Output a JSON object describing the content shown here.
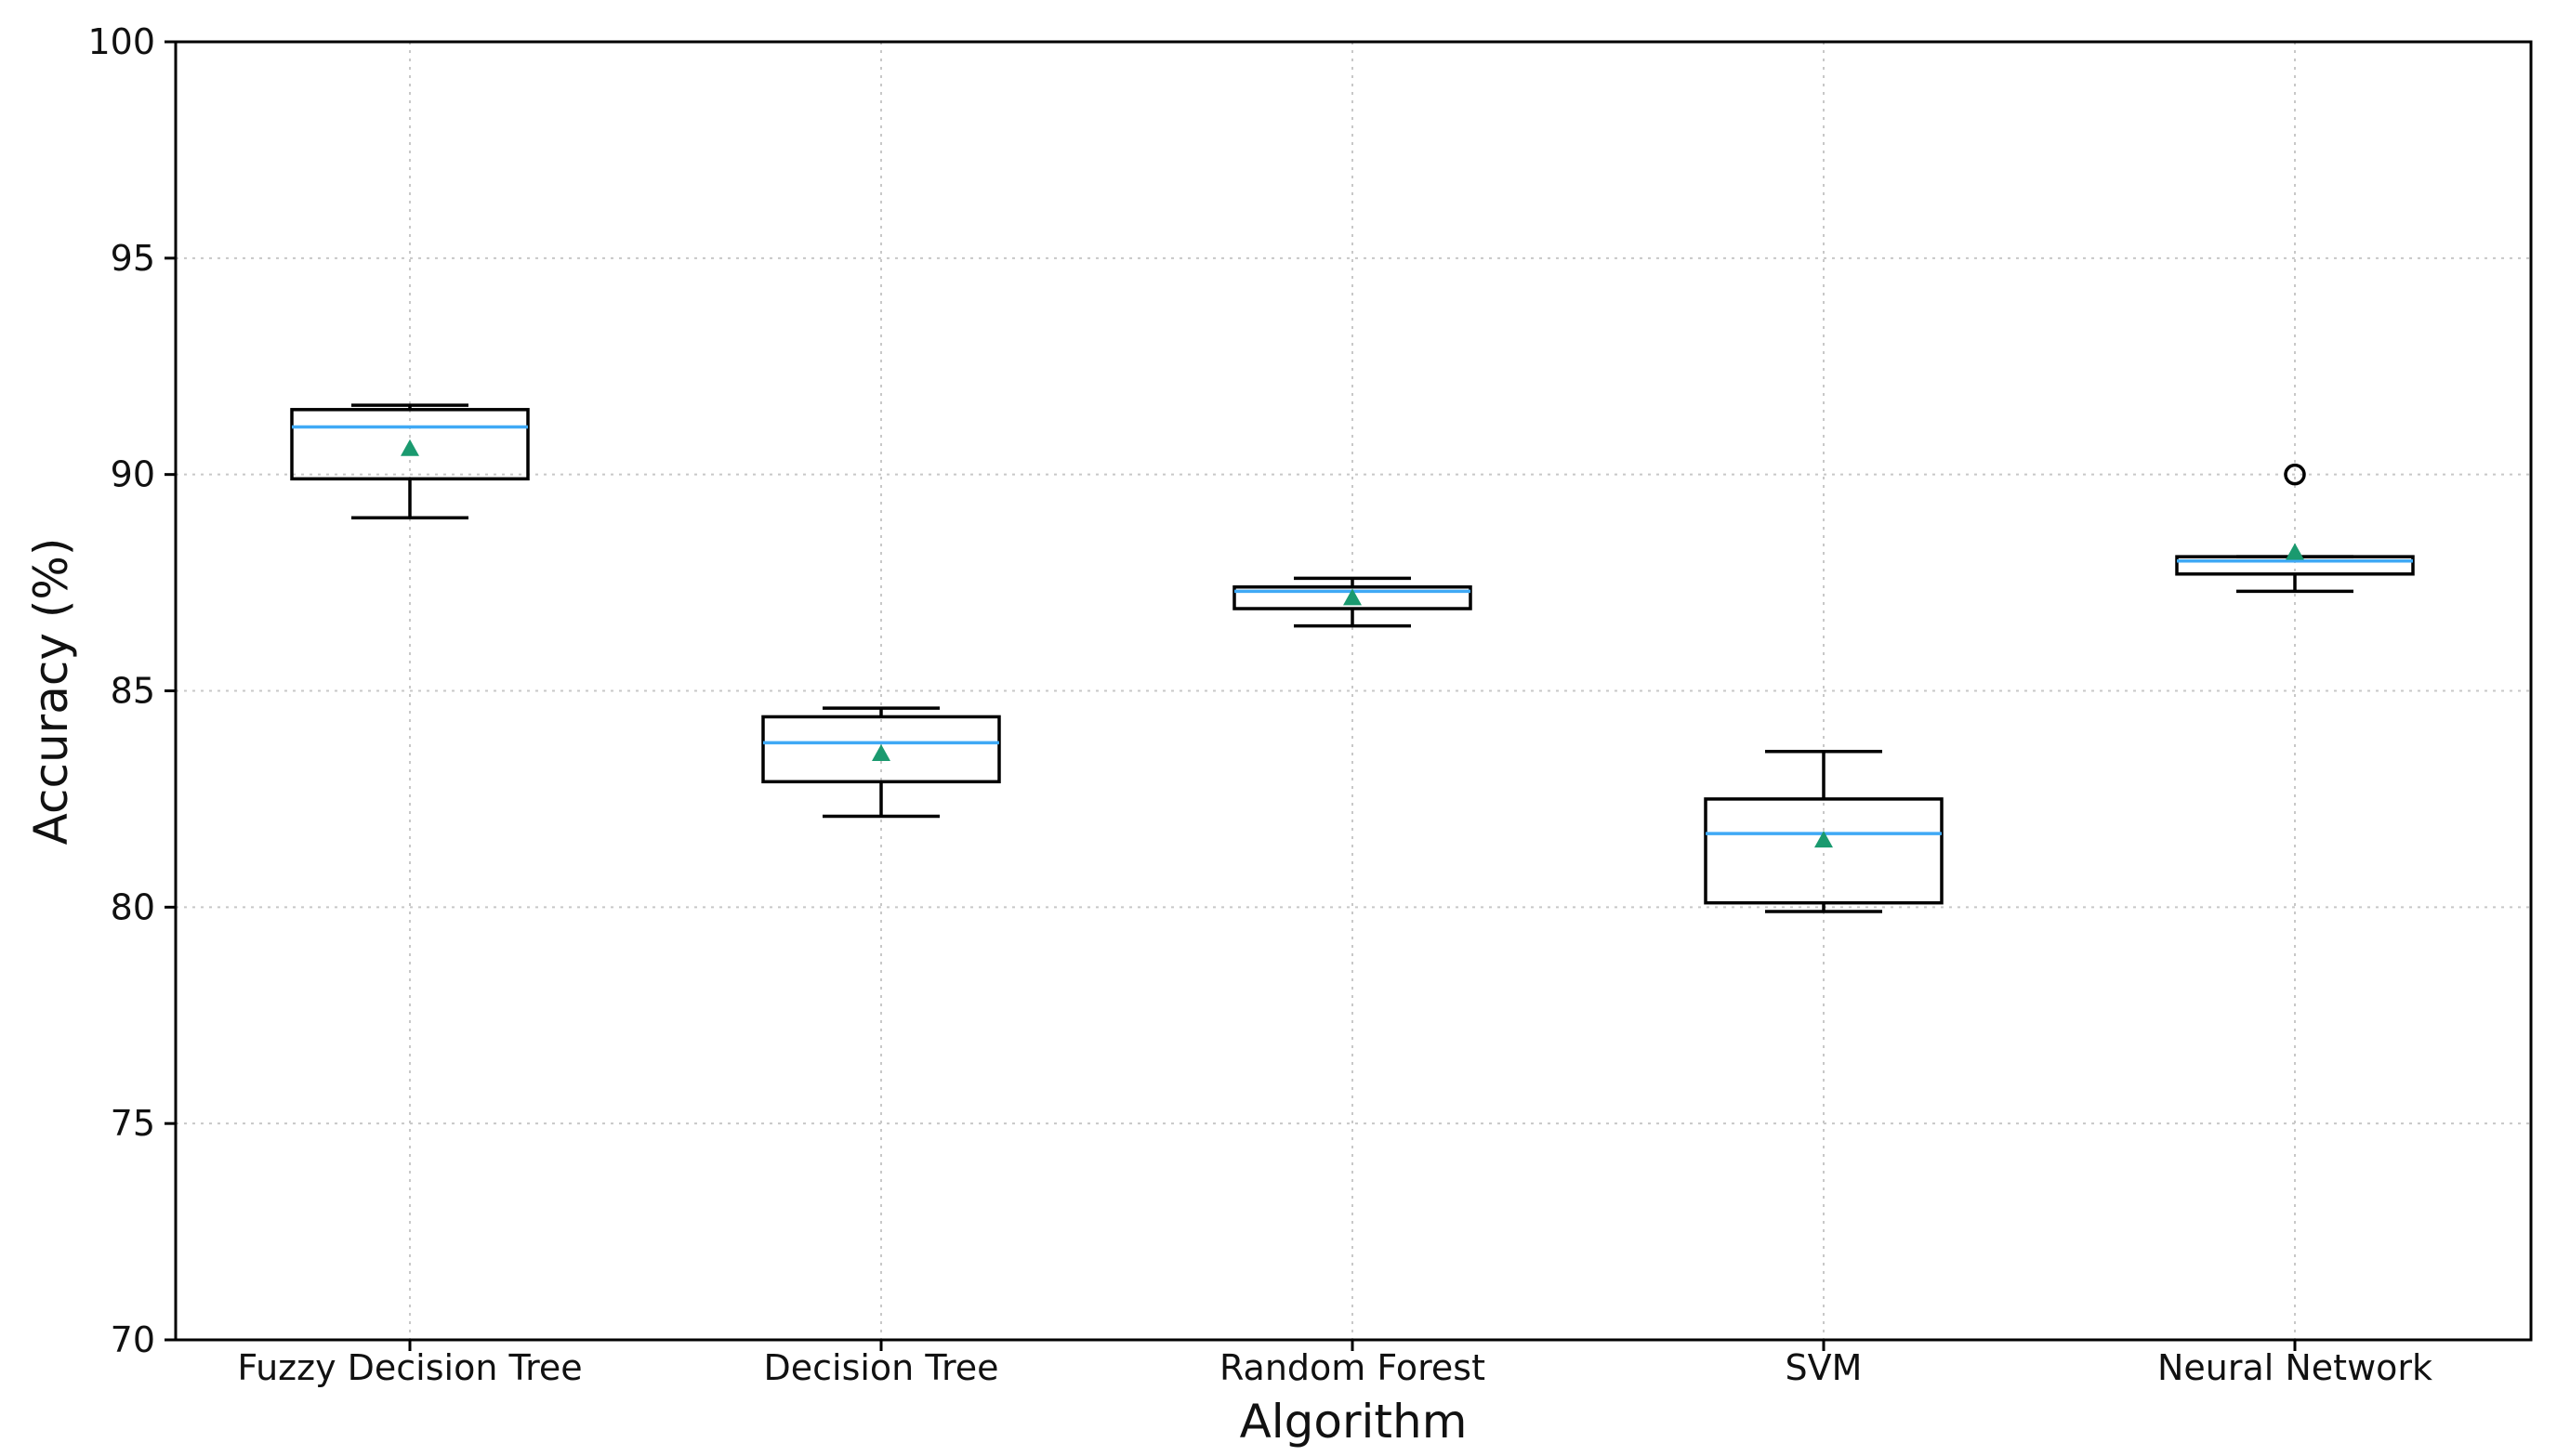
{
  "chart_data": {
    "type": "boxplot",
    "title": "",
    "xlabel": "Algorithm",
    "ylabel": "Accuracy (%)",
    "ylim": [
      70,
      100
    ],
    "yticks": [
      70,
      75,
      80,
      85,
      90,
      95,
      100
    ],
    "grid": true,
    "show_means": true,
    "categories": [
      "Fuzzy Decision Tree",
      "Decision Tree",
      "Random Forest",
      "SVM",
      "Neural Network"
    ],
    "boxes": [
      {
        "name": "Fuzzy Decision Tree",
        "whisker_low": 89.0,
        "q1": 89.9,
        "median": 91.1,
        "q3": 91.5,
        "whisker_high": 91.6,
        "mean": 90.6,
        "outliers": []
      },
      {
        "name": "Decision Tree",
        "whisker_low": 82.1,
        "q1": 82.9,
        "median": 83.8,
        "q3": 84.4,
        "whisker_high": 84.6,
        "mean": 83.55,
        "outliers": []
      },
      {
        "name": "Random Forest",
        "whisker_low": 86.5,
        "q1": 86.9,
        "median": 87.3,
        "q3": 87.4,
        "whisker_high": 87.6,
        "mean": 87.15,
        "outliers": []
      },
      {
        "name": "SVM",
        "whisker_low": 79.9,
        "q1": 80.1,
        "median": 81.7,
        "q3": 82.5,
        "whisker_high": 83.6,
        "mean": 81.55,
        "outliers": []
      },
      {
        "name": "Neural Network",
        "whisker_low": 87.3,
        "q1": 87.7,
        "median": 88.0,
        "q3": 88.1,
        "whisker_high": 88.1,
        "mean": 88.2,
        "outliers": [
          90.0
        ]
      }
    ],
    "colors": {
      "median": "#3fa9f5",
      "mean": "#1a9a6f",
      "box": "#000000",
      "grid": "#c8c8c8"
    }
  }
}
